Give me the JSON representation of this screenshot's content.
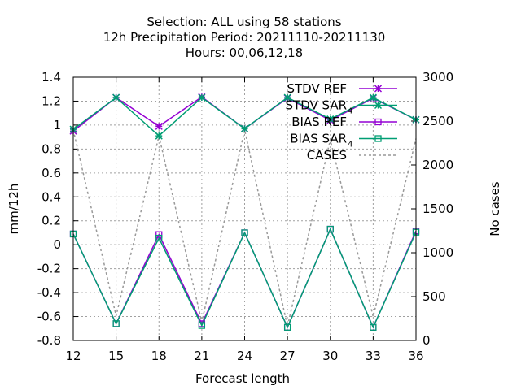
{
  "chart_data": {
    "type": "line",
    "title_lines": [
      "Selection: ALL using    58 stations",
      "12h Precipitation   Period: 20211110-20211130",
      "Hours:  00,06,12,18"
    ],
    "xlabel": "Forecast length",
    "ylabel": "mm/12h",
    "y2label": "No cases",
    "x": [
      12,
      15,
      18,
      21,
      24,
      27,
      30,
      33,
      36
    ],
    "xlim": [
      12,
      36
    ],
    "ylim": [
      -0.8,
      1.4
    ],
    "y2lim": [
      0,
      3000
    ],
    "yticks": [
      "1.4",
      "1.2",
      "1",
      "0.8",
      "0.6",
      "0.4",
      "0.2",
      "0",
      "-0.2",
      "-0.4",
      "-0.6",
      "-0.8"
    ],
    "y2ticks": [
      "3000",
      "2500",
      "2000",
      "1500",
      "1000",
      "500",
      "0"
    ],
    "xticks": [
      "12",
      "15",
      "18",
      "21",
      "24",
      "27",
      "30",
      "33",
      "36"
    ],
    "grid": true,
    "legend_position": "top-right",
    "series": [
      {
        "name": "STDV REF",
        "color": "#9400d3",
        "marker": "x-star",
        "axis": "y",
        "values": [
          0.95,
          1.23,
          0.99,
          1.235,
          0.97,
          1.225,
          1.04,
          1.225,
          1.045
        ]
      },
      {
        "name": "STDV SAR",
        "name_sub": "4",
        "color": "#009e73",
        "marker": "x-star",
        "axis": "y",
        "values": [
          0.965,
          1.23,
          0.91,
          1.23,
          0.97,
          1.23,
          1.05,
          1.23,
          1.045
        ]
      },
      {
        "name": "BIAS REF",
        "color": "#9400d3",
        "marker": "square",
        "axis": "y",
        "values": [
          0.09,
          -0.66,
          0.085,
          -0.66,
          0.1,
          -0.69,
          0.13,
          -0.69,
          0.115
        ]
      },
      {
        "name": "BIAS SAR",
        "name_sub": "4",
        "color": "#009e73",
        "marker": "square",
        "axis": "y",
        "values": [
          0.09,
          -0.66,
          0.055,
          -0.675,
          0.1,
          -0.69,
          0.13,
          -0.69,
          0.105
        ]
      },
      {
        "name": "CASES",
        "color": "#999999",
        "marker": "none",
        "dash": true,
        "axis": "y2",
        "values": [
          2400,
          280,
          2330,
          210,
          2400,
          160,
          2290,
          270,
          2300
        ]
      }
    ]
  }
}
